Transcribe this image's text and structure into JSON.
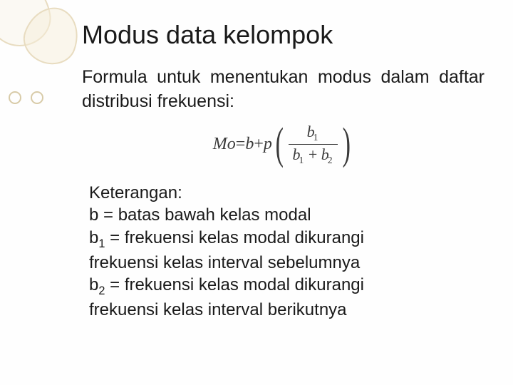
{
  "colors": {
    "text": "#1a1a1a",
    "formula": "#3a3a3a",
    "decor_border": "#e8dcc0",
    "decor_fill": "rgba(245, 238, 218, 0.4)",
    "ring_border": "#d8cba8",
    "background": "#fefefe"
  },
  "title": "Modus data kelompok",
  "subtitle": "Formula untuk menentukan modus dalam daftar distribusi frekuensi:",
  "formula": {
    "lhs": "Mo",
    "eq": " = ",
    "b": "b",
    "plus": " + ",
    "p": "p",
    "num_var": "b",
    "num_sub": "1",
    "den_left_var": "b",
    "den_left_sub": "1",
    "den_plus": " + ",
    "den_right_var": "b",
    "den_right_sub": "2"
  },
  "explain": {
    "header": "Keterangan:",
    "line_b": "b  = batas bawah kelas modal",
    "b1_var": "b",
    "b1_sub": "1",
    "b1_text": " = frekuensi kelas modal dikurangi",
    "b1_cont": "frekuensi kelas interval sebelumnya",
    "b2_var": "b",
    "b2_sub": "2",
    "b2_text": " = frekuensi kelas modal dikurangi",
    "b2_cont": "frekuensi kelas interval berikutnya"
  }
}
